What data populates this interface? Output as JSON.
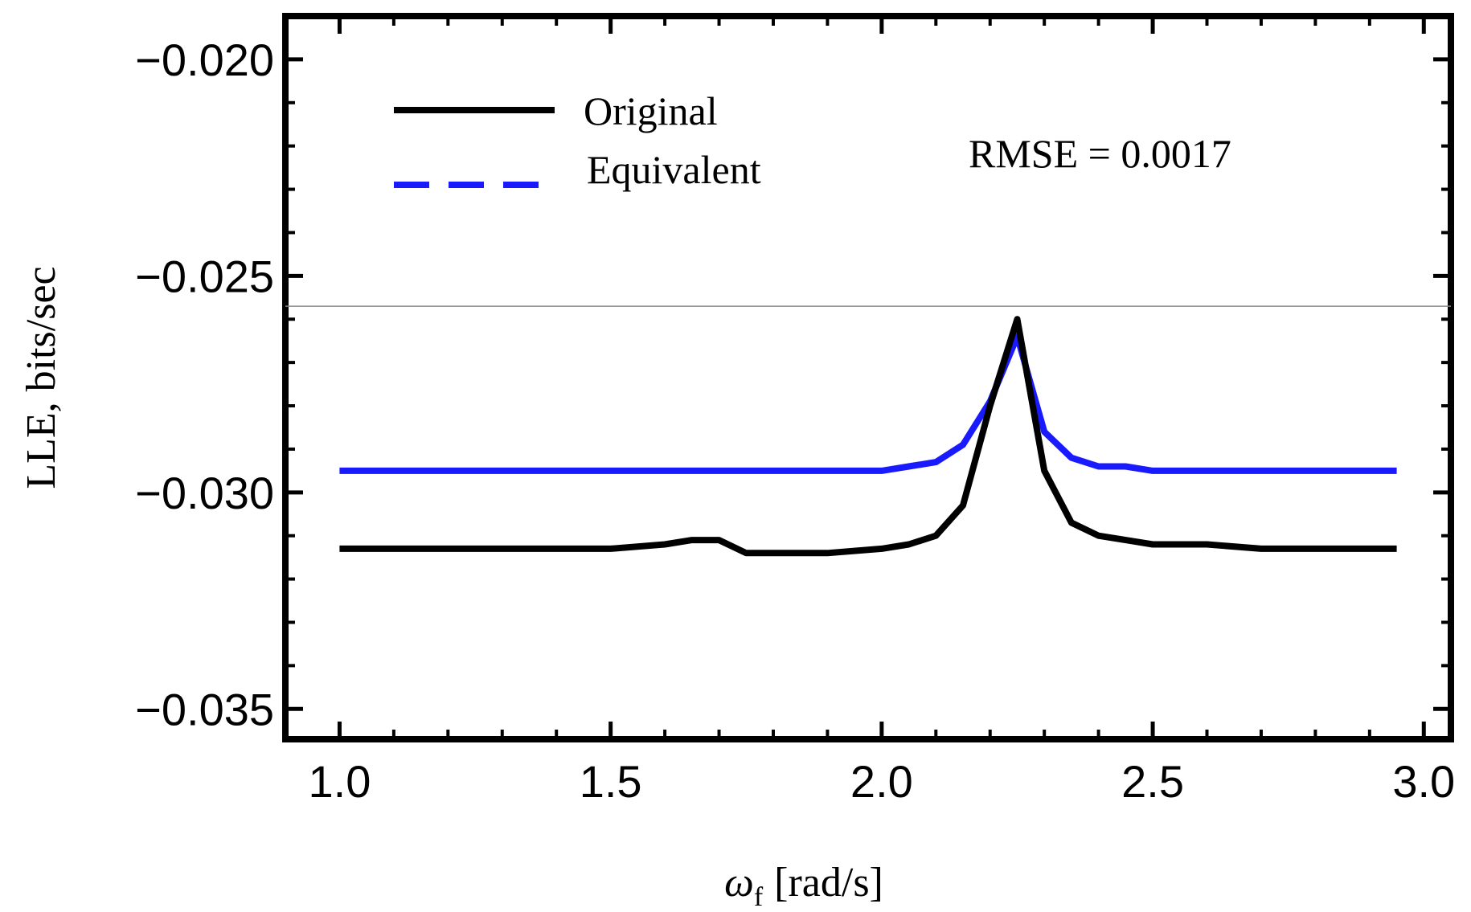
{
  "chart_data": {
    "type": "line",
    "title": "",
    "xlabel": "ω_f [rad/s]",
    "xlabel_symbol": "ω",
    "xlabel_subscript": "f",
    "xlabel_unit": "[rad/s]",
    "ylabel": "LLE, bits/sec",
    "xlim": [
      0.9,
      3.05
    ],
    "ylim": [
      -0.0357,
      -0.019
    ],
    "xticks": [
      1.0,
      1.5,
      2.0,
      2.5,
      3.0
    ],
    "xtick_labels": [
      "1.0",
      "1.5",
      "2.0",
      "2.5",
      "3.0"
    ],
    "yticks": [
      -0.02,
      -0.025,
      -0.03,
      -0.035
    ],
    "ytick_labels": [
      "−0.020",
      "−0.025",
      "−0.030",
      "−0.035"
    ],
    "reference_line_y": -0.0257,
    "legend_position": "top-left",
    "annotation": "RMSE = 0.0017",
    "series": [
      {
        "name": "Original",
        "color": "#000000",
        "dash": "solid",
        "x": [
          1.0,
          1.2,
          1.4,
          1.5,
          1.6,
          1.65,
          1.7,
          1.75,
          1.8,
          1.9,
          2.0,
          2.05,
          2.1,
          2.15,
          2.2,
          2.25,
          2.3,
          2.35,
          2.4,
          2.45,
          2.5,
          2.6,
          2.7,
          2.8,
          2.9,
          2.95
        ],
        "values": [
          -0.0313,
          -0.0313,
          -0.0313,
          -0.0313,
          -0.0312,
          -0.0311,
          -0.0311,
          -0.0314,
          -0.0314,
          -0.0314,
          -0.0313,
          -0.0312,
          -0.031,
          -0.0303,
          -0.028,
          -0.026,
          -0.0295,
          -0.0307,
          -0.031,
          -0.0311,
          -0.0312,
          -0.0312,
          -0.0313,
          -0.0313,
          -0.0313,
          -0.0313
        ]
      },
      {
        "name": "Equivalent",
        "color": "#1a1aff",
        "dash": "solid",
        "legend_dash": "dashed",
        "x": [
          1.0,
          1.2,
          1.4,
          1.6,
          1.8,
          1.9,
          2.0,
          2.05,
          2.1,
          2.15,
          2.2,
          2.25,
          2.3,
          2.35,
          2.4,
          2.45,
          2.5,
          2.6,
          2.7,
          2.8,
          2.9,
          2.95
        ],
        "values": [
          -0.0295,
          -0.0295,
          -0.0295,
          -0.0295,
          -0.0295,
          -0.0295,
          -0.0295,
          -0.0294,
          -0.0293,
          -0.0289,
          -0.0279,
          -0.0264,
          -0.0286,
          -0.0292,
          -0.0294,
          -0.0294,
          -0.0295,
          -0.0295,
          -0.0295,
          -0.0295,
          -0.0295,
          -0.0295
        ]
      }
    ]
  }
}
